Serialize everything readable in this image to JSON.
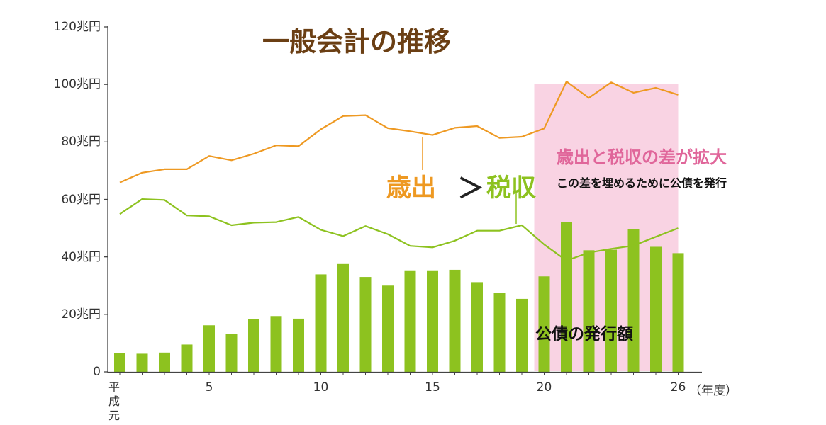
{
  "title": "一般会計の推移",
  "labels": {
    "expenditure": "歳出",
    "gt": "＞",
    "tax": "税収",
    "gap_title": "歳出と税収の差が拡大",
    "gap_sub": "この差を埋めるために公債を発行",
    "bonds": "公債の発行額"
  },
  "colors": {
    "expenditure": "#ee9922",
    "tax": "#8dc21f",
    "bonds": "#8dc21f",
    "gap_fill": "#f9d3e3",
    "title": "#6b3f14",
    "gap_title": "#e0669a"
  },
  "chart_data": {
    "type": "bar",
    "title": "一般会計の推移",
    "xlabel": "（年度）",
    "x_tick_first_top": "平成",
    "x_tick_first_bottom": "元",
    "x_tick_labels": [
      "5",
      "10",
      "15",
      "20",
      "26"
    ],
    "x_tick_positions": [
      5,
      10,
      15,
      20,
      26
    ],
    "y_tick_labels": [
      "0",
      "20兆円",
      "40兆円",
      "60兆円",
      "80兆円",
      "100兆円",
      "120兆円"
    ],
    "ylim": [
      0,
      120
    ],
    "x": [
      1,
      2,
      3,
      4,
      5,
      6,
      7,
      8,
      9,
      10,
      11,
      12,
      13,
      14,
      15,
      16,
      17,
      18,
      19,
      20,
      21,
      22,
      23,
      24,
      25,
      26
    ],
    "series": [
      {
        "name": "公債の発行額",
        "type": "bar",
        "values": [
          6.6,
          6.3,
          6.7,
          9.5,
          16.2,
          13.1,
          18.3,
          19.4,
          18.5,
          33.9,
          37.5,
          33.0,
          30.0,
          35.3,
          35.3,
          35.5,
          31.2,
          27.5,
          25.4,
          33.2,
          52.0,
          42.3,
          42.5,
          49.6,
          43.5,
          41.3
        ]
      },
      {
        "name": "歳出",
        "type": "line",
        "values": [
          65.9,
          69.3,
          70.5,
          70.5,
          75.1,
          73.6,
          75.9,
          78.8,
          78.5,
          84.4,
          89.0,
          89.3,
          84.8,
          83.7,
          82.4,
          84.9,
          85.5,
          81.4,
          81.8,
          84.7,
          101.0,
          95.3,
          100.7,
          97.1,
          98.8,
          96.4
        ]
      },
      {
        "name": "税収",
        "type": "line",
        "values": [
          54.9,
          60.1,
          59.8,
          54.4,
          54.1,
          51.0,
          51.9,
          52.1,
          53.9,
          49.4,
          47.2,
          50.7,
          47.9,
          43.8,
          43.3,
          45.6,
          49.1,
          49.1,
          51.0,
          44.3,
          38.7,
          41.5,
          42.8,
          43.9,
          47.0,
          50.0
        ]
      }
    ],
    "highlight": {
      "from": 20,
      "to": 26
    }
  }
}
